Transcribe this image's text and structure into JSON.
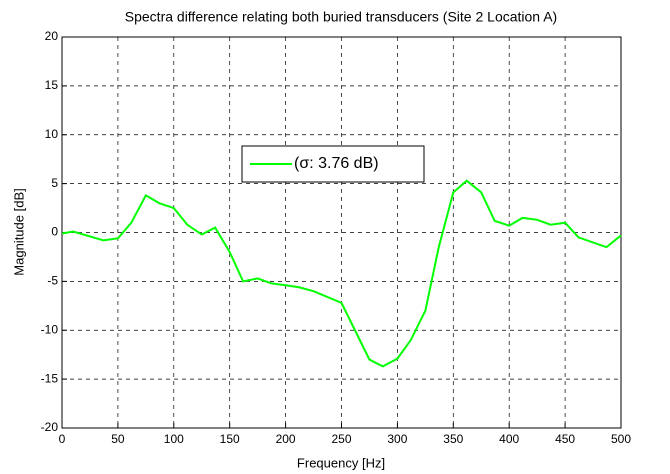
{
  "chart_data": {
    "type": "line",
    "title": "Spectra difference relating both buried transducers (Site 2 Location A)",
    "x_label": "Frequency [Hz]",
    "y_label": "Magnitude [dB]",
    "x": [
      0,
      10,
      37,
      50,
      62,
      75,
      87,
      100,
      112,
      125,
      137,
      150,
      162,
      175,
      187,
      200,
      212,
      225,
      250,
      275,
      287,
      300,
      312,
      325,
      337,
      350,
      362,
      375,
      387,
      400,
      412,
      425,
      437,
      450,
      462,
      487,
      500
    ],
    "series": [
      {
        "name": "(σ: 3.76 dB)",
        "color": "#00ff00",
        "values": [
          -0.1,
          0.1,
          -0.8,
          -0.6,
          1.0,
          3.8,
          3.0,
          2.5,
          0.8,
          -0.2,
          0.5,
          -2.0,
          -5.0,
          -4.7,
          -5.2,
          -5.4,
          -5.6,
          -6.0,
          -7.2,
          -13.0,
          -13.7,
          -12.9,
          -11.0,
          -8.0,
          -1.5,
          4.1,
          5.3,
          4.1,
          1.2,
          0.7,
          1.5,
          1.3,
          0.8,
          1.0,
          -0.5,
          -1.5,
          -0.3
        ]
      }
    ],
    "xlim": [
      0,
      500
    ],
    "xticks": [
      0,
      50,
      100,
      150,
      200,
      250,
      300,
      350,
      400,
      450,
      500
    ],
    "ylim": [
      -20,
      20
    ],
    "yticks": [
      -20,
      -15,
      -10,
      -5,
      0,
      5,
      10,
      15,
      20
    ],
    "grid": true
  }
}
